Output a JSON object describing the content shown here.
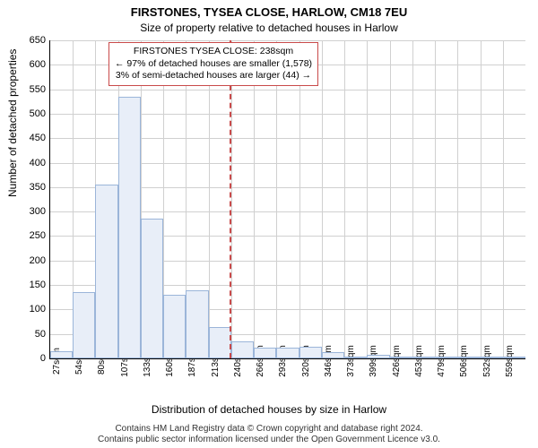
{
  "title_main": "FIRSTONES, TYSEA CLOSE, HARLOW, CM18 7EU",
  "title_sub": "Size of property relative to detached houses in Harlow",
  "y_axis_label": "Number of detached properties",
  "x_axis_label": "Distribution of detached houses by size in Harlow",
  "attribution1": "Contains HM Land Registry data © Crown copyright and database right 2024.",
  "attribution2": "Contains public sector information licensed under the Open Government Licence v3.0.",
  "histogram": {
    "type": "histogram",
    "bar_fill": "#e8eef8",
    "bar_stroke": "#9bb5d9",
    "grid_color": "#d0d0d0",
    "background_color": "#ffffff",
    "axis_color": "#000000",
    "ylim": [
      0,
      650
    ],
    "y_ticks": [
      0,
      50,
      100,
      150,
      200,
      250,
      300,
      350,
      400,
      450,
      500,
      550,
      600,
      650
    ],
    "x_ticks": [
      "27sqm",
      "54sqm",
      "80sqm",
      "107sqm",
      "133sqm",
      "160sqm",
      "187sqm",
      "213sqm",
      "240sqm",
      "266sqm",
      "293sqm",
      "320sqm",
      "346sqm",
      "373sqm",
      "399sqm",
      "426sqm",
      "453sqm",
      "479sqm",
      "506sqm",
      "532sqm",
      "559sqm"
    ],
    "values": [
      15,
      135,
      355,
      535,
      285,
      130,
      140,
      65,
      35,
      22,
      22,
      24,
      12,
      4,
      8,
      4,
      0,
      3,
      3,
      0,
      3
    ],
    "reference_value_sqm": 238,
    "reference_color": "#c94a4a",
    "annotation": {
      "line1": "FIRSTONES TYSEA CLOSE: 238sqm",
      "line2": "← 97% of detached houses are smaller (1,578)",
      "line3": "3% of semi-detached houses are larger (44) →",
      "border_color": "#c94a4a",
      "bg_color": "#ffffff",
      "fontsize": 10.5
    }
  }
}
